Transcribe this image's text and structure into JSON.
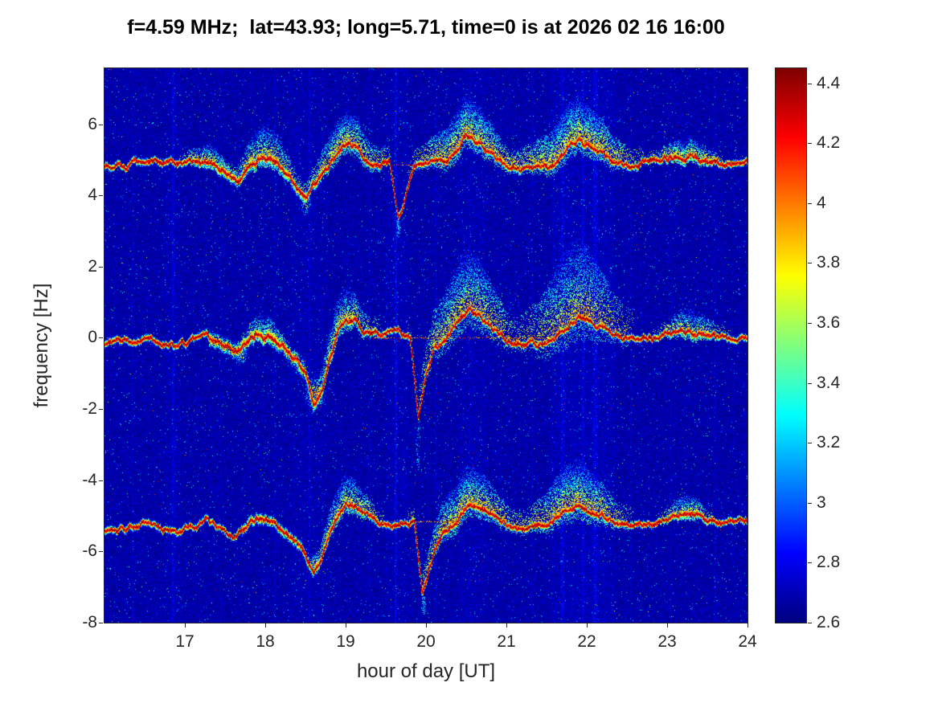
{
  "figure": {
    "background": "#ffffff",
    "axis_color": "#262626",
    "title_color": "#000000"
  },
  "chart_data": {
    "type": "heatmap",
    "title": "f=4.59 MHz;  lat=43.93; long=5.71, time=0 is at 2026 02 16 16:00",
    "xlabel": "hour of day [UT]",
    "ylabel": "frequency [Hz]",
    "xlim": [
      16,
      24
    ],
    "ylim": [
      -8,
      7.57
    ],
    "clim": [
      2.6,
      4.45
    ],
    "xticks": [
      17,
      18,
      19,
      20,
      21,
      22,
      23,
      24
    ],
    "yticks": [
      -8,
      -6,
      -4,
      -2,
      0,
      2,
      4,
      6
    ],
    "colorbar": {
      "colormap": "jet",
      "ticks": [
        2.6,
        2.8,
        3,
        3.2,
        3.4,
        3.6,
        3.8,
        4,
        4.2,
        4.4
      ]
    },
    "grid": false,
    "legend": false,
    "seed": 7,
    "noise": {
      "floor": 2.6,
      "spread": 0.22,
      "speck_prob": 0.015,
      "speck_max": 0.75,
      "hot_speck_prob": 0.0012,
      "hot_speck_max": 1.7
    },
    "streaks": [
      [
        16.35,
        0.1,
        2
      ],
      [
        16.85,
        0.14,
        3
      ],
      [
        17.45,
        0.08,
        2
      ],
      [
        18.12,
        0.1,
        2
      ],
      [
        18.55,
        0.12,
        2
      ],
      [
        19.3,
        0.1,
        2
      ],
      [
        19.62,
        0.22,
        3
      ],
      [
        20.12,
        0.1,
        2
      ],
      [
        20.55,
        0.08,
        2
      ],
      [
        21.32,
        0.08,
        2
      ],
      [
        21.7,
        0.16,
        4
      ],
      [
        21.95,
        0.14,
        3
      ],
      [
        22.1,
        0.16,
        5
      ],
      [
        22.55,
        0.08,
        2
      ],
      [
        23.05,
        0.08,
        2
      ],
      [
        23.6,
        0.1,
        2
      ]
    ],
    "bands": [
      [
        21.55,
        22.35,
        0.09
      ],
      [
        19.5,
        19.78,
        0.07
      ],
      [
        20.4,
        20.75,
        0.06
      ],
      [
        18.3,
        18.75,
        0.05
      ],
      [
        16.75,
        16.95,
        0.06
      ]
    ],
    "traces": [
      {
        "name": "upper trace ~+5 Hz",
        "points": [
          [
            16.05,
            4.85
          ],
          [
            16.3,
            4.9
          ],
          [
            16.6,
            4.95
          ],
          [
            16.9,
            4.85
          ],
          [
            17.1,
            4.9
          ],
          [
            17.3,
            5.0
          ],
          [
            17.5,
            4.75
          ],
          [
            17.65,
            4.4
          ],
          [
            17.8,
            4.75
          ],
          [
            17.95,
            5.1
          ],
          [
            18.1,
            5.05
          ],
          [
            18.25,
            4.6
          ],
          [
            18.4,
            4.15
          ],
          [
            18.5,
            3.95
          ],
          [
            18.6,
            4.3
          ],
          [
            18.75,
            4.7
          ],
          [
            18.9,
            5.2
          ],
          [
            19.0,
            5.5
          ],
          [
            19.1,
            5.35
          ],
          [
            19.25,
            4.9
          ],
          [
            19.4,
            4.85
          ],
          [
            19.55,
            4.9
          ],
          [
            19.65,
            3.35
          ],
          [
            19.75,
            4.1
          ],
          [
            19.85,
            4.75
          ],
          [
            20.0,
            4.85
          ],
          [
            20.2,
            4.95
          ],
          [
            20.35,
            5.2
          ],
          [
            20.5,
            5.65
          ],
          [
            20.65,
            5.5
          ],
          [
            20.8,
            5.15
          ],
          [
            21.0,
            4.85
          ],
          [
            21.2,
            4.7
          ],
          [
            21.4,
            4.75
          ],
          [
            21.6,
            4.9
          ],
          [
            21.75,
            5.3
          ],
          [
            21.9,
            5.5
          ],
          [
            22.05,
            5.3
          ],
          [
            22.2,
            5.1
          ],
          [
            22.35,
            4.9
          ],
          [
            22.5,
            4.8
          ],
          [
            22.7,
            4.95
          ],
          [
            22.9,
            5.0
          ],
          [
            23.1,
            5.05
          ],
          [
            23.3,
            5.15
          ],
          [
            23.5,
            4.95
          ],
          [
            23.7,
            4.9
          ],
          [
            23.85,
            5.0
          ],
          [
            24.0,
            4.95
          ]
        ],
        "rough": [
          [
            17.4,
            18.7,
            1.8
          ]
        ],
        "plumes": [
          [
            17.3,
            0.15,
            0.5,
            0.3
          ],
          [
            18.0,
            0.2,
            0.9,
            0.5
          ],
          [
            19.0,
            0.25,
            0.9,
            0.6
          ],
          [
            20.5,
            0.3,
            1.1,
            0.8
          ],
          [
            21.85,
            0.35,
            1.2,
            0.9
          ],
          [
            23.25,
            0.2,
            0.5,
            0.4
          ]
        ],
        "baseline": {
          "y": 4.87,
          "segments": [
            [
              19.55,
              20.35
            ]
          ]
        }
      },
      {
        "name": "center trace ~0 Hz",
        "points": [
          [
            16.05,
            -0.15
          ],
          [
            16.3,
            -0.05
          ],
          [
            16.6,
            0.0
          ],
          [
            16.85,
            -0.2
          ],
          [
            17.05,
            -0.1
          ],
          [
            17.25,
            0.1
          ],
          [
            17.45,
            -0.15
          ],
          [
            17.6,
            -0.45
          ],
          [
            17.75,
            -0.2
          ],
          [
            17.9,
            0.15
          ],
          [
            18.05,
            0.0
          ],
          [
            18.2,
            -0.3
          ],
          [
            18.35,
            -0.5
          ],
          [
            18.5,
            -1.0
          ],
          [
            18.6,
            -1.9
          ],
          [
            18.7,
            -1.5
          ],
          [
            18.8,
            -0.6
          ],
          [
            18.9,
            0.2
          ],
          [
            19.0,
            0.55
          ],
          [
            19.1,
            0.5
          ],
          [
            19.2,
            0.25
          ],
          [
            19.35,
            0.1
          ],
          [
            19.5,
            0.1
          ],
          [
            19.65,
            0.15
          ],
          [
            19.8,
            -0.05
          ],
          [
            19.9,
            -2.3
          ],
          [
            20.0,
            -1.0
          ],
          [
            20.1,
            -0.3
          ],
          [
            20.25,
            0.0
          ],
          [
            20.4,
            0.5
          ],
          [
            20.55,
            0.8
          ],
          [
            20.7,
            0.5
          ],
          [
            20.85,
            0.2
          ],
          [
            21.0,
            -0.05
          ],
          [
            21.2,
            -0.2
          ],
          [
            21.4,
            -0.25
          ],
          [
            21.6,
            -0.05
          ],
          [
            21.75,
            0.3
          ],
          [
            21.9,
            0.55
          ],
          [
            22.05,
            0.45
          ],
          [
            22.2,
            0.3
          ],
          [
            22.35,
            0.1
          ],
          [
            22.5,
            0.0
          ],
          [
            22.7,
            0.05
          ],
          [
            22.9,
            0.05
          ],
          [
            23.1,
            0.1
          ],
          [
            23.3,
            0.2
          ],
          [
            23.5,
            0.05
          ],
          [
            23.7,
            0.0
          ],
          [
            23.85,
            0.05
          ],
          [
            24.0,
            0.0
          ]
        ],
        "rough": [
          [
            17.3,
            18.85,
            2.2
          ]
        ],
        "plumes": [
          [
            18.0,
            0.15,
            0.6,
            0.3
          ],
          [
            18.95,
            0.2,
            0.9,
            0.5
          ],
          [
            20.5,
            0.3,
            1.7,
            0.9
          ],
          [
            21.85,
            0.3,
            2.3,
            1.0
          ],
          [
            23.3,
            0.2,
            0.6,
            0.3
          ]
        ],
        "baseline": {
          "y": 0.02,
          "segments": [
            [
              19.35,
              21.45
            ]
          ]
        }
      },
      {
        "name": "lower trace ~-5.2 Hz",
        "points": [
          [
            16.05,
            -5.4
          ],
          [
            16.3,
            -5.3
          ],
          [
            16.6,
            -5.25
          ],
          [
            16.85,
            -5.45
          ],
          [
            17.05,
            -5.35
          ],
          [
            17.25,
            -5.15
          ],
          [
            17.45,
            -5.4
          ],
          [
            17.6,
            -5.55
          ],
          [
            17.75,
            -5.35
          ],
          [
            17.9,
            -5.0
          ],
          [
            18.05,
            -5.1
          ],
          [
            18.2,
            -5.35
          ],
          [
            18.35,
            -5.6
          ],
          [
            18.5,
            -6.1
          ],
          [
            18.6,
            -6.6
          ],
          [
            18.7,
            -6.2
          ],
          [
            18.8,
            -5.5
          ],
          [
            18.9,
            -5.0
          ],
          [
            19.0,
            -4.6
          ],
          [
            19.1,
            -4.7
          ],
          [
            19.25,
            -5.0
          ],
          [
            19.4,
            -5.15
          ],
          [
            19.55,
            -5.2
          ],
          [
            19.7,
            -5.15
          ],
          [
            19.85,
            -5.2
          ],
          [
            19.95,
            -7.2
          ],
          [
            20.1,
            -6.0
          ],
          [
            20.2,
            -5.5
          ],
          [
            20.35,
            -5.2
          ],
          [
            20.5,
            -4.65
          ],
          [
            20.65,
            -4.75
          ],
          [
            20.8,
            -4.95
          ],
          [
            21.0,
            -5.2
          ],
          [
            21.2,
            -5.3
          ],
          [
            21.4,
            -5.3
          ],
          [
            21.6,
            -5.1
          ],
          [
            21.75,
            -4.75
          ],
          [
            21.9,
            -4.7
          ],
          [
            22.05,
            -4.85
          ],
          [
            22.2,
            -5.0
          ],
          [
            22.35,
            -5.1
          ],
          [
            22.5,
            -5.2
          ],
          [
            22.7,
            -5.15
          ],
          [
            22.9,
            -5.1
          ],
          [
            23.1,
            -5.0
          ],
          [
            23.3,
            -4.9
          ],
          [
            23.5,
            -5.1
          ],
          [
            23.7,
            -5.15
          ],
          [
            23.85,
            -5.05
          ],
          [
            24.0,
            -5.1
          ]
        ],
        "rough": [
          [
            17.7,
            18.85,
            1.5
          ]
        ],
        "plumes": [
          [
            19.0,
            0.2,
            0.8,
            0.5
          ],
          [
            20.5,
            0.3,
            1.1,
            0.7
          ],
          [
            21.85,
            0.3,
            1.3,
            0.8
          ],
          [
            23.25,
            0.15,
            0.5,
            0.3
          ]
        ],
        "baseline": {
          "y": -5.15,
          "segments": [
            [
              19.55,
              20.5
            ]
          ]
        }
      }
    ],
    "blobs": [
      [
        18.5,
        3.75,
        0.1,
        0.45,
        3.9
      ],
      [
        18.42,
        -0.75,
        0.1,
        0.45,
        4.0
      ],
      [
        18.62,
        -1.55,
        0.16,
        0.55,
        4.25
      ],
      [
        17.7,
        -0.5,
        0.12,
        0.4,
        3.8
      ],
      [
        18.62,
        -6.35,
        0.1,
        0.4,
        4.05
      ]
    ],
    "tails": [
      [
        19.65,
        3.3,
        2.85
      ],
      [
        19.9,
        -2.5,
        -3.7
      ],
      [
        19.97,
        -7.25,
        -7.75
      ]
    ]
  }
}
